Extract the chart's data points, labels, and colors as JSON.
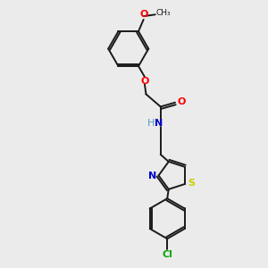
{
  "background_color": "#ebebeb",
  "bond_color": "#1a1a1a",
  "atom_colors": {
    "O": "#ff0000",
    "N": "#0000cd",
    "S": "#cccc00",
    "Cl": "#00aa00",
    "C": "#1a1a1a",
    "H": "#5599bb"
  },
  "lw": 1.4,
  "fs": 8.0
}
